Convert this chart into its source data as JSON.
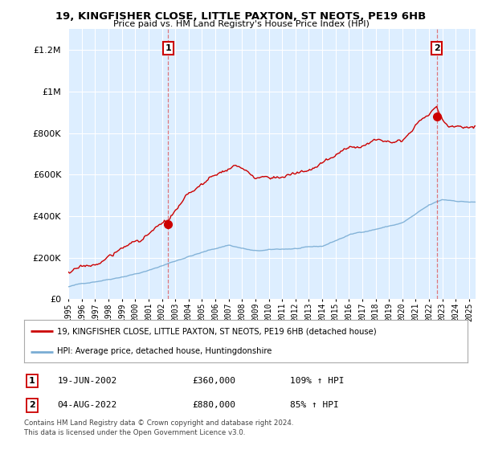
{
  "title": "19, KINGFISHER CLOSE, LITTLE PAXTON, ST NEOTS, PE19 6HB",
  "subtitle": "Price paid vs. HM Land Registry's House Price Index (HPI)",
  "ylim": [
    0,
    1300000
  ],
  "yticks": [
    0,
    200000,
    400000,
    600000,
    800000,
    1000000,
    1200000
  ],
  "ytick_labels": [
    "£0",
    "£200K",
    "£400K",
    "£600K",
    "£800K",
    "£1M",
    "£1.2M"
  ],
  "sale1_date_x": 2002.46,
  "sale1_price": 360000,
  "sale1_label": "1",
  "sale2_date_x": 2022.58,
  "sale2_price": 880000,
  "sale2_label": "2",
  "red_color": "#cc0000",
  "blue_color": "#7aadd4",
  "background_color": "#ffffff",
  "plot_bg_color": "#ddeeff",
  "grid_color": "#ffffff",
  "legend_label_red": "19, KINGFISHER CLOSE, LITTLE PAXTON, ST NEOTS, PE19 6HB (detached house)",
  "legend_label_blue": "HPI: Average price, detached house, Huntingdonshire",
  "table_row1": [
    "1",
    "19-JUN-2002",
    "£360,000",
    "109% ↑ HPI"
  ],
  "table_row2": [
    "2",
    "04-AUG-2022",
    "£880,000",
    "85% ↑ HPI"
  ],
  "footnote": "Contains HM Land Registry data © Crown copyright and database right 2024.\nThis data is licensed under the Open Government Licence v3.0.",
  "xmin": 1995.0,
  "xmax": 2025.5
}
